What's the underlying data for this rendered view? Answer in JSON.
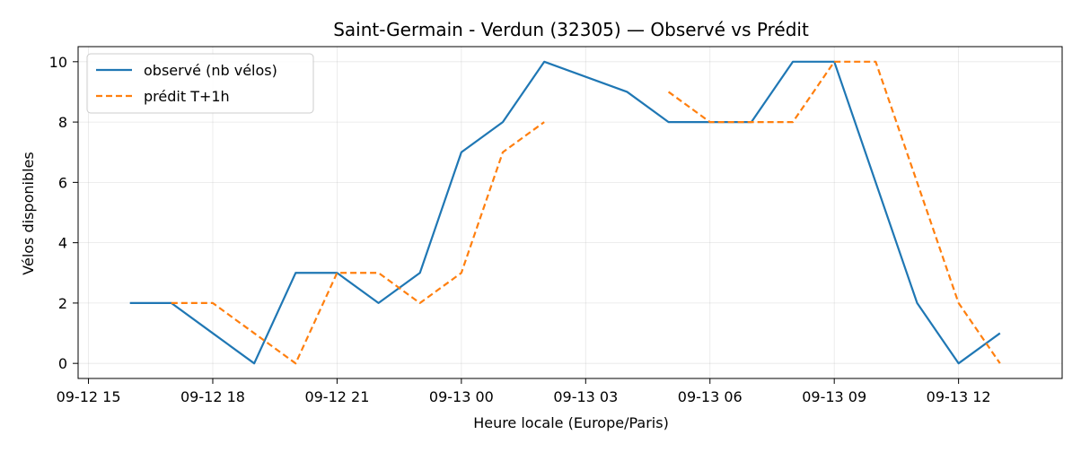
{
  "chart_data": {
    "type": "line",
    "title": "Saint-Germain - Verdun (32305) — Observé vs Prédit",
    "xlabel": "Heure locale (Europe/Paris)",
    "ylabel": "Vélos disponibles",
    "x_tick_labels": [
      "09-12 15",
      "09-12 18",
      "09-12 21",
      "09-13 00",
      "09-13 03",
      "09-13 06",
      "09-13 09",
      "09-13 12"
    ],
    "y_ticks": [
      0,
      2,
      4,
      6,
      8,
      10
    ],
    "xlim": [
      "2024-09-12 14:45",
      "2024-09-13 14:30"
    ],
    "ylim": [
      -0.5,
      10.5
    ],
    "grid": true,
    "legend_position": "top-left",
    "series": [
      {
        "name": "observé (nb vélos)",
        "color": "#1f77b4",
        "style": "solid",
        "points": [
          [
            "2024-09-12 16:00",
            2
          ],
          [
            "2024-09-12 17:00",
            2
          ],
          [
            "2024-09-12 18:00",
            1
          ],
          [
            "2024-09-12 19:00",
            0
          ],
          [
            "2024-09-12 20:00",
            3
          ],
          [
            "2024-09-12 21:00",
            3
          ],
          [
            "2024-09-12 22:00",
            2
          ],
          [
            "2024-09-12 23:00",
            3
          ],
          [
            "2024-09-13 00:00",
            7
          ],
          [
            "2024-09-13 01:00",
            8
          ],
          [
            "2024-09-13 02:00",
            10
          ],
          [
            "2024-09-13 04:00",
            9
          ],
          [
            "2024-09-13 05:00",
            8
          ],
          [
            "2024-09-13 06:00",
            8
          ],
          [
            "2024-09-13 07:00",
            8
          ],
          [
            "2024-09-13 08:00",
            10
          ],
          [
            "2024-09-13 09:00",
            10
          ],
          [
            "2024-09-13 11:00",
            2
          ],
          [
            "2024-09-13 12:00",
            0
          ],
          [
            "2024-09-13 13:00",
            1
          ]
        ]
      },
      {
        "name": "prédit T+1h",
        "color": "#ff7f0e",
        "style": "dashed",
        "segments": [
          [
            [
              "2024-09-12 17:00",
              2
            ],
            [
              "2024-09-12 18:00",
              2
            ],
            [
              "2024-09-12 19:00",
              1
            ],
            [
              "2024-09-12 20:00",
              0
            ],
            [
              "2024-09-12 21:00",
              3
            ],
            [
              "2024-09-12 22:00",
              3
            ],
            [
              "2024-09-12 23:00",
              2
            ],
            [
              "2024-09-13 00:00",
              3
            ],
            [
              "2024-09-13 01:00",
              7
            ],
            [
              "2024-09-13 02:00",
              8
            ]
          ],
          [
            [
              "2024-09-13 05:00",
              9
            ],
            [
              "2024-09-13 06:00",
              8
            ],
            [
              "2024-09-13 07:00",
              8
            ],
            [
              "2024-09-13 08:00",
              8
            ],
            [
              "2024-09-13 09:00",
              10
            ],
            [
              "2024-09-13 10:00",
              10
            ],
            [
              "2024-09-13 12:00",
              2
            ],
            [
              "2024-09-13 13:00",
              0
            ]
          ]
        ]
      }
    ]
  }
}
